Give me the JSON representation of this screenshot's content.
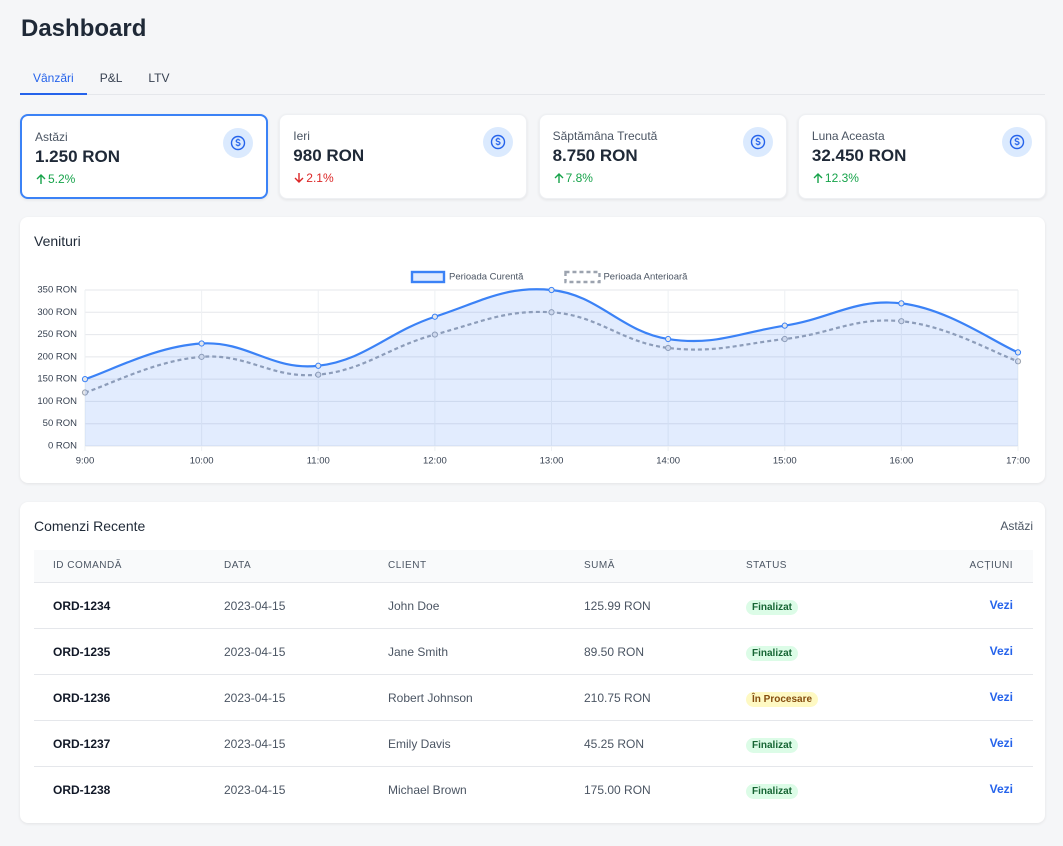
{
  "header": {
    "title": "Dashboard"
  },
  "tabs": {
    "items": [
      "Vânzări",
      "P&L",
      "LTV"
    ],
    "active": 0
  },
  "cards": [
    {
      "label": "Astăzi",
      "value": "1.250 RON",
      "change": "5.2%",
      "trend": "up",
      "selected": true
    },
    {
      "label": "Ieri",
      "value": "980 RON",
      "change": "2.1%",
      "trend": "down",
      "selected": false
    },
    {
      "label": "Săptămâna Trecută",
      "value": "8.750 RON",
      "change": "7.8%",
      "trend": "up",
      "selected": false
    },
    {
      "label": "Luna Aceasta",
      "value": "32.450 RON",
      "change": "12.3%",
      "trend": "up",
      "selected": false
    }
  ],
  "chart_data": {
    "type": "line",
    "title": "Venituri",
    "categories": [
      "9:00",
      "10:00",
      "11:00",
      "12:00",
      "13:00",
      "14:00",
      "15:00",
      "16:00",
      "17:00"
    ],
    "series": [
      {
        "name": "Perioada Curentă",
        "color": "#3b82f6",
        "fill": true,
        "dashed": false,
        "values": [
          150,
          230,
          180,
          290,
          350,
          240,
          270,
          320,
          210
        ]
      },
      {
        "name": "Perioada Anterioară",
        "color": "#9ca3af",
        "fill": false,
        "dashed": true,
        "values": [
          120,
          200,
          160,
          250,
          300,
          220,
          240,
          280,
          190
        ]
      }
    ],
    "ylim": [
      0,
      350
    ],
    "yticks": [
      {
        "value": 0,
        "label": "0 RON"
      },
      {
        "value": 50,
        "label": "50 RON"
      },
      {
        "value": 100,
        "label": "100 RON"
      },
      {
        "value": 150,
        "label": "150 RON"
      },
      {
        "value": 200,
        "label": "200 RON"
      },
      {
        "value": 250,
        "label": "250 RON"
      },
      {
        "value": 300,
        "label": "300 RON"
      },
      {
        "value": 350,
        "label": "350 RON"
      }
    ],
    "grid": true,
    "legend": "top"
  },
  "orders": {
    "title": "Comenzi Recente",
    "filter": "Astăzi",
    "columns": [
      "ID COMANDĂ",
      "DATA",
      "CLIENT",
      "SUMĂ",
      "STATUS",
      "ACȚIUNI"
    ],
    "rows": [
      {
        "id": "ORD-1234",
        "date": "2023-04-15",
        "client": "John Doe",
        "amount": "125.99 RON",
        "status": "Finalizat",
        "status_bg": "#dcfce7",
        "status_color": "#166534",
        "action": "Vezi"
      },
      {
        "id": "ORD-1235",
        "date": "2023-04-15",
        "client": "Jane Smith",
        "amount": "89.50 RON",
        "status": "Finalizat",
        "status_bg": "#dcfce7",
        "status_color": "#166534",
        "action": "Vezi"
      },
      {
        "id": "ORD-1236",
        "date": "2023-04-15",
        "client": "Robert Johnson",
        "amount": "210.75 RON",
        "status": "În Procesare",
        "status_bg": "#fef9c3",
        "status_color": "#854d0e",
        "action": "Vezi"
      },
      {
        "id": "ORD-1237",
        "date": "2023-04-15",
        "client": "Emily Davis",
        "amount": "45.25 RON",
        "status": "Finalizat",
        "status_bg": "#dcfce7",
        "status_color": "#166534",
        "action": "Vezi"
      },
      {
        "id": "ORD-1238",
        "date": "2023-04-15",
        "client": "Michael Brown",
        "amount": "175.00 RON",
        "status": "Finalizat",
        "status_bg": "#dcfce7",
        "status_color": "#166534",
        "action": "Vezi"
      }
    ]
  }
}
